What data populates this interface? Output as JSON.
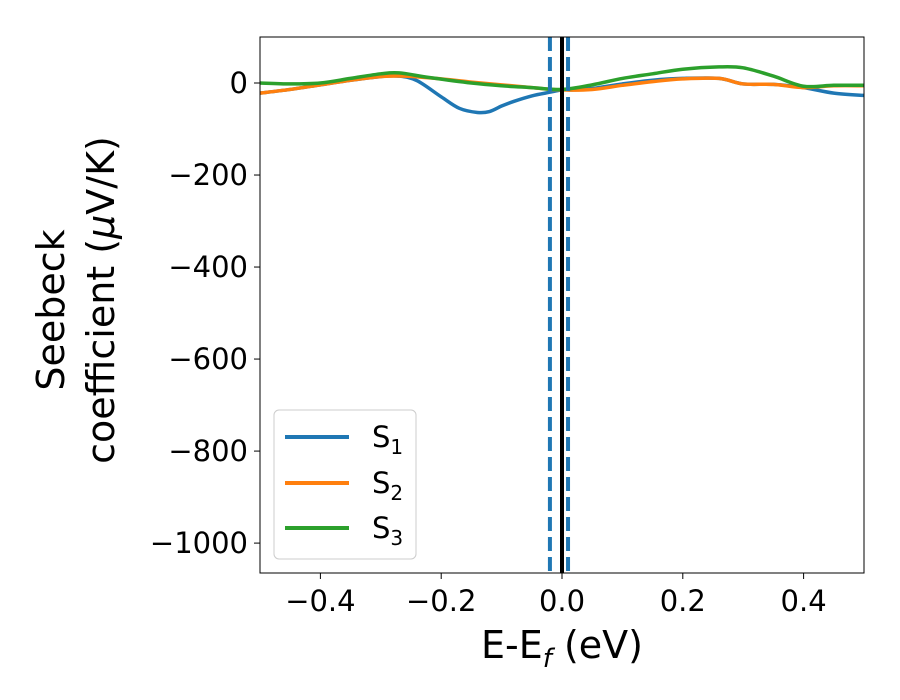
{
  "chart_data": {
    "type": "line",
    "xlabel": {
      "main": "E-E",
      "sub": "f",
      "unit": " (eV)"
    },
    "ylabel": {
      "line1": "Seebeck",
      "line2_pre": "coefficient  (",
      "line2_mu": "μ",
      "line2_post": "V/K)"
    },
    "xlim": [
      -0.5,
      0.5
    ],
    "ylim": [
      -1065,
      100
    ],
    "x_ticks": [
      {
        "value": -0.4,
        "label": "−0.4"
      },
      {
        "value": -0.2,
        "label": "−0.2"
      },
      {
        "value": 0.0,
        "label": "0.0"
      },
      {
        "value": 0.2,
        "label": "0.2"
      },
      {
        "value": 0.4,
        "label": "0.4"
      }
    ],
    "y_ticks": [
      {
        "value": 0,
        "label": "0"
      },
      {
        "value": -200,
        "label": "−200"
      },
      {
        "value": -400,
        "label": "−400"
      },
      {
        "value": -600,
        "label": "−600"
      },
      {
        "value": -800,
        "label": "−800"
      },
      {
        "value": -1000,
        "label": "−1000"
      }
    ],
    "legend_position": "lower-left",
    "series": [
      {
        "name_main": "S",
        "name_sub": "1",
        "color": "#1f77b4",
        "x": [
          -0.5,
          -0.45,
          -0.4,
          -0.35,
          -0.3,
          -0.27,
          -0.24,
          -0.2,
          -0.17,
          -0.14,
          -0.12,
          -0.1,
          -0.08,
          -0.05,
          -0.02,
          0.0,
          0.02,
          0.05,
          0.1,
          0.15,
          0.2,
          0.26,
          0.3,
          0.35,
          0.4,
          0.45,
          0.5
        ],
        "y": [
          -22,
          -14,
          -4,
          6,
          14,
          15,
          5,
          -30,
          -55,
          -64,
          -62,
          -50,
          -40,
          -28,
          -20,
          -15,
          -15,
          -12,
          -2,
          6,
          10,
          10,
          -2,
          -3,
          -10,
          -22,
          -27
        ]
      },
      {
        "name_main": "S",
        "name_sub": "2",
        "color": "#ff7f0e",
        "x": [
          -0.5,
          -0.45,
          -0.4,
          -0.35,
          -0.3,
          -0.26,
          -0.2,
          -0.15,
          -0.1,
          -0.05,
          0.0,
          0.05,
          0.1,
          0.15,
          0.2,
          0.26,
          0.3,
          0.35,
          0.4,
          0.45,
          0.5
        ],
        "y": [
          -22,
          -14,
          -4,
          6,
          14,
          15,
          9,
          2,
          -4,
          -10,
          -15,
          -14,
          -5,
          3,
          9,
          10,
          -2,
          -3,
          -10,
          -6,
          -6
        ]
      },
      {
        "name_main": "S",
        "name_sub": "3",
        "color": "#2ca02c",
        "x": [
          -0.5,
          -0.45,
          -0.4,
          -0.35,
          -0.3,
          -0.27,
          -0.22,
          -0.15,
          -0.1,
          -0.05,
          0.0,
          0.05,
          0.1,
          0.15,
          0.2,
          0.26,
          0.3,
          0.35,
          0.4,
          0.45,
          0.5
        ],
        "y": [
          0,
          -2,
          0,
          10,
          20,
          22,
          12,
          0,
          -6,
          -10,
          -14,
          -4,
          10,
          20,
          30,
          35,
          33,
          15,
          -7,
          -5,
          -5
        ]
      }
    ],
    "vertical_lines": [
      {
        "x": -0.02,
        "color": "#1f77b4",
        "style": "dashed"
      },
      {
        "x": 0.01,
        "color": "#1f77b4",
        "style": "dashed"
      },
      {
        "x": 0.0,
        "color": "#000000",
        "style": "solid"
      }
    ]
  }
}
